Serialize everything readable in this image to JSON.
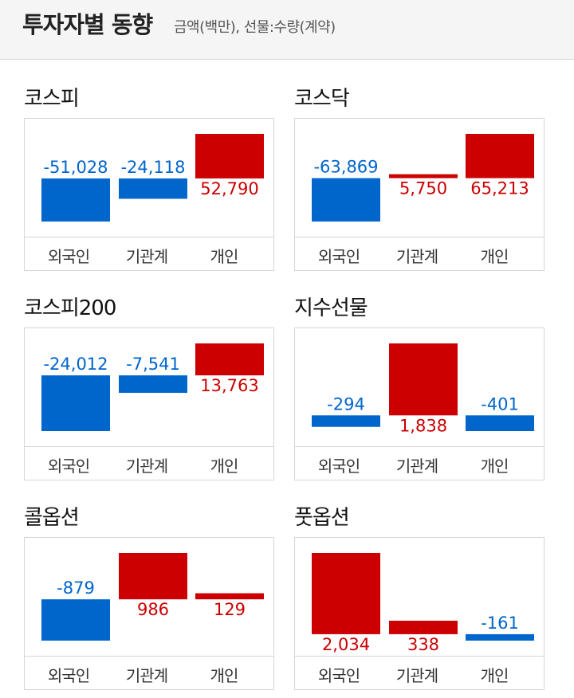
{
  "header": {
    "title": "투자자별 동향",
    "subtitle": "금액(백만), 선물:수량(계약)"
  },
  "colors": {
    "positive": "#cc0000",
    "negative": "#0066cc"
  },
  "chart_data": [
    {
      "type": "bar",
      "title": "코스피",
      "categories": [
        "외국인",
        "기관계",
        "개인"
      ],
      "values": [
        -51028,
        -24118,
        52790
      ],
      "labels": [
        "-51,028",
        "-24,118",
        "52,790"
      ]
    },
    {
      "type": "bar",
      "title": "코스닥",
      "categories": [
        "외국인",
        "기관계",
        "개인"
      ],
      "values": [
        -63869,
        5750,
        65213
      ],
      "labels": [
        "-63,869",
        "5,750",
        "65,213"
      ]
    },
    {
      "type": "bar",
      "title": "코스피200",
      "categories": [
        "외국인",
        "기관계",
        "개인"
      ],
      "values": [
        -24012,
        -7541,
        13763
      ],
      "labels": [
        "-24,012",
        "-7,541",
        "13,763"
      ]
    },
    {
      "type": "bar",
      "title": "지수선물",
      "categories": [
        "외국인",
        "기관계",
        "개인"
      ],
      "values": [
        -294,
        1838,
        -401
      ],
      "labels": [
        "-294",
        "1,838",
        "-401"
      ]
    },
    {
      "type": "bar",
      "title": "콜옵션",
      "categories": [
        "외국인",
        "기관계",
        "개인"
      ],
      "values": [
        -879,
        986,
        129
      ],
      "labels": [
        "-879",
        "986",
        "129"
      ]
    },
    {
      "type": "bar",
      "title": "풋옵션",
      "categories": [
        "외국인",
        "기관계",
        "개인"
      ],
      "values": [
        2034,
        338,
        -161
      ],
      "labels": [
        "2,034",
        "338",
        "-161"
      ]
    }
  ]
}
